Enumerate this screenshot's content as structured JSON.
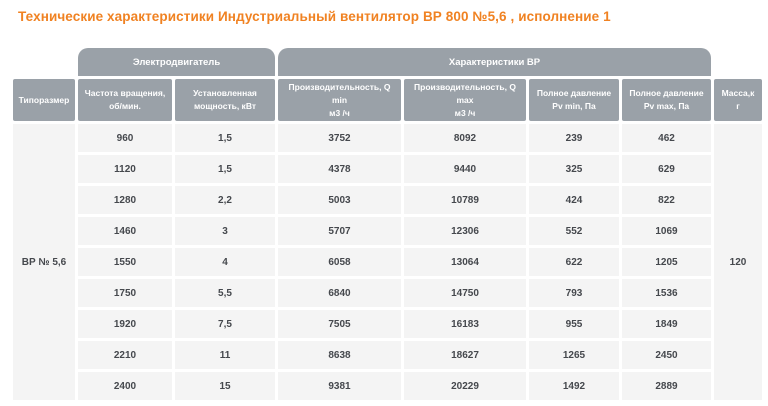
{
  "title": "Технические характеристики Индустриальный вентилятор ВР 800 №5,6 , исполнение 1",
  "colors": {
    "accent_orange": "#f08222",
    "header_gray": "#9aa1a8",
    "cell_bg": "#f4f4f4",
    "cell_text": "#45484d",
    "background": "#ffffff"
  },
  "table": {
    "group_headers": {
      "motor": "Электродвигатель",
      "fan": "Характеристики ВР"
    },
    "columns": [
      {
        "line1": "Типоразмер",
        "line2": ""
      },
      {
        "line1": "Частота вращения,",
        "line2": "об/мин."
      },
      {
        "line1": "Установленная",
        "line2": "мощность, кВт"
      },
      {
        "line1": "Производительность, Q min",
        "line2": "м3 /ч"
      },
      {
        "line1": "Производительность, Q max",
        "line2": "м3 /ч"
      },
      {
        "line1": "Полное давление",
        "line2": "Pv min, Па"
      },
      {
        "line1": "Полное давление",
        "line2": "Pv max, Па"
      },
      {
        "line1": "Масса,к",
        "line2": "г"
      }
    ],
    "typesize": "ВР № 5,6",
    "mass": "120",
    "rows": [
      [
        "960",
        "1,5",
        "3752",
        "8092",
        "239",
        "462"
      ],
      [
        "1120",
        "1,5",
        "4378",
        "9440",
        "325",
        "629"
      ],
      [
        "1280",
        "2,2",
        "5003",
        "10789",
        "424",
        "822"
      ],
      [
        "1460",
        "3",
        "5707",
        "12306",
        "552",
        "1069"
      ],
      [
        "1550",
        "4",
        "6058",
        "13064",
        "622",
        "1205"
      ],
      [
        "1750",
        "5,5",
        "6840",
        "14750",
        "793",
        "1536"
      ],
      [
        "1920",
        "7,5",
        "7505",
        "16183",
        "955",
        "1849"
      ],
      [
        "2210",
        "11",
        "8638",
        "18627",
        "1265",
        "2450"
      ],
      [
        "2400",
        "15",
        "9381",
        "20229",
        "1492",
        "2889"
      ]
    ]
  }
}
